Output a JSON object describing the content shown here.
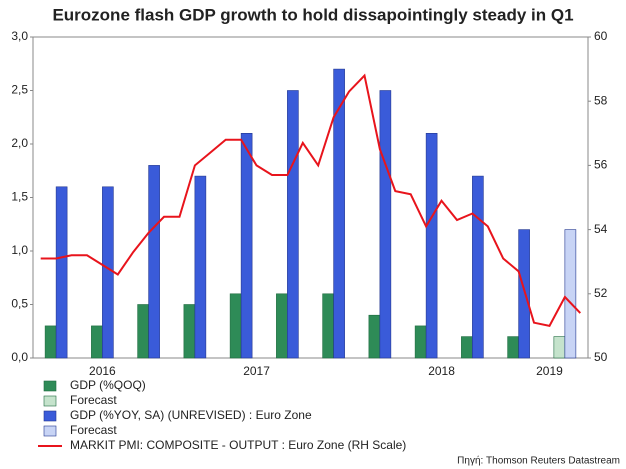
{
  "chart_data": {
    "type": "bar",
    "title": "Eurozone flash GDP growth to hold dissapointingly steady in Q1",
    "source": "Πηγή: Thomson Reuters Datastream",
    "categories": [
      null,
      null,
      null,
      null,
      "2016",
      null,
      null,
      null,
      null,
      null,
      null,
      null,
      null,
      null,
      "2017",
      null,
      null,
      null,
      null,
      null,
      null,
      null,
      null,
      null,
      null,
      null,
      "2018",
      null,
      null,
      null,
      null,
      null,
      null,
      "2019",
      null,
      null
    ],
    "series": [
      {
        "name": "GDP (%QOQ)",
        "type": "bar",
        "color": "#2e8b57",
        "values": [
          null,
          0.3,
          null,
          null,
          0.3,
          null,
          null,
          0.5,
          null,
          null,
          0.5,
          null,
          null,
          0.6,
          null,
          null,
          0.6,
          null,
          null,
          0.6,
          null,
          null,
          0.4,
          null,
          null,
          0.3,
          null,
          null,
          0.2,
          null,
          null,
          0.2,
          null,
          null,
          null,
          null
        ]
      },
      {
        "name": "Forecast",
        "type": "bar",
        "color": "#c5e3cc",
        "values": [
          null,
          null,
          null,
          null,
          null,
          null,
          null,
          null,
          null,
          null,
          null,
          null,
          null,
          null,
          null,
          null,
          null,
          null,
          null,
          null,
          null,
          null,
          null,
          null,
          null,
          null,
          null,
          null,
          null,
          null,
          null,
          null,
          null,
          null,
          0.2,
          null
        ]
      },
      {
        "name": "GDP (%YOY, SA) (UNREVISED) : Euro Zone",
        "type": "bar",
        "color": "#3a5bd9",
        "values": [
          null,
          1.6,
          null,
          null,
          1.6,
          null,
          null,
          1.8,
          null,
          null,
          1.7,
          null,
          null,
          2.1,
          null,
          null,
          2.5,
          null,
          null,
          2.7,
          null,
          null,
          2.5,
          null,
          null,
          2.1,
          null,
          null,
          1.7,
          null,
          null,
          1.2,
          null,
          null,
          null,
          null
        ]
      },
      {
        "name": "Forecast",
        "type": "bar",
        "color": "#c8d4f5",
        "values": [
          null,
          null,
          null,
          null,
          null,
          null,
          null,
          null,
          null,
          null,
          null,
          null,
          null,
          null,
          null,
          null,
          null,
          null,
          null,
          null,
          null,
          null,
          null,
          null,
          null,
          null,
          null,
          null,
          null,
          null,
          null,
          null,
          null,
          null,
          1.2,
          null
        ]
      },
      {
        "name": "MARKIT PMI: COMPOSITE - OUTPUT : Euro Zone (RH Scale)",
        "type": "line",
        "axis": "y2",
        "color": "#e8141c",
        "values": [
          53.1,
          53.1,
          53.2,
          53.2,
          52.9,
          52.6,
          53.3,
          53.9,
          54.4,
          54.4,
          56.0,
          56.4,
          56.8,
          56.8,
          56.0,
          55.7,
          55.7,
          56.7,
          56.0,
          57.5,
          58.3,
          58.8,
          56.5,
          55.2,
          55.1,
          54.1,
          54.9,
          54.3,
          54.5,
          54.1,
          53.1,
          52.7,
          51.1,
          51.0,
          51.9,
          51.4
        ]
      }
    ],
    "ylim": [
      0,
      3
    ],
    "yticks": [
      {
        "value": 0,
        "label": "0,0"
      },
      {
        "value": 0.5,
        "label": "0,5"
      },
      {
        "value": 1,
        "label": "1,0"
      },
      {
        "value": 1.5,
        "label": "1,5"
      },
      {
        "value": 2,
        "label": "2,0"
      },
      {
        "value": 2.5,
        "label": "2,5"
      },
      {
        "value": 3,
        "label": "3,0"
      }
    ],
    "y2lim": [
      50,
      60
    ],
    "y2ticks": [
      50,
      52,
      54,
      56,
      58,
      60
    ]
  }
}
